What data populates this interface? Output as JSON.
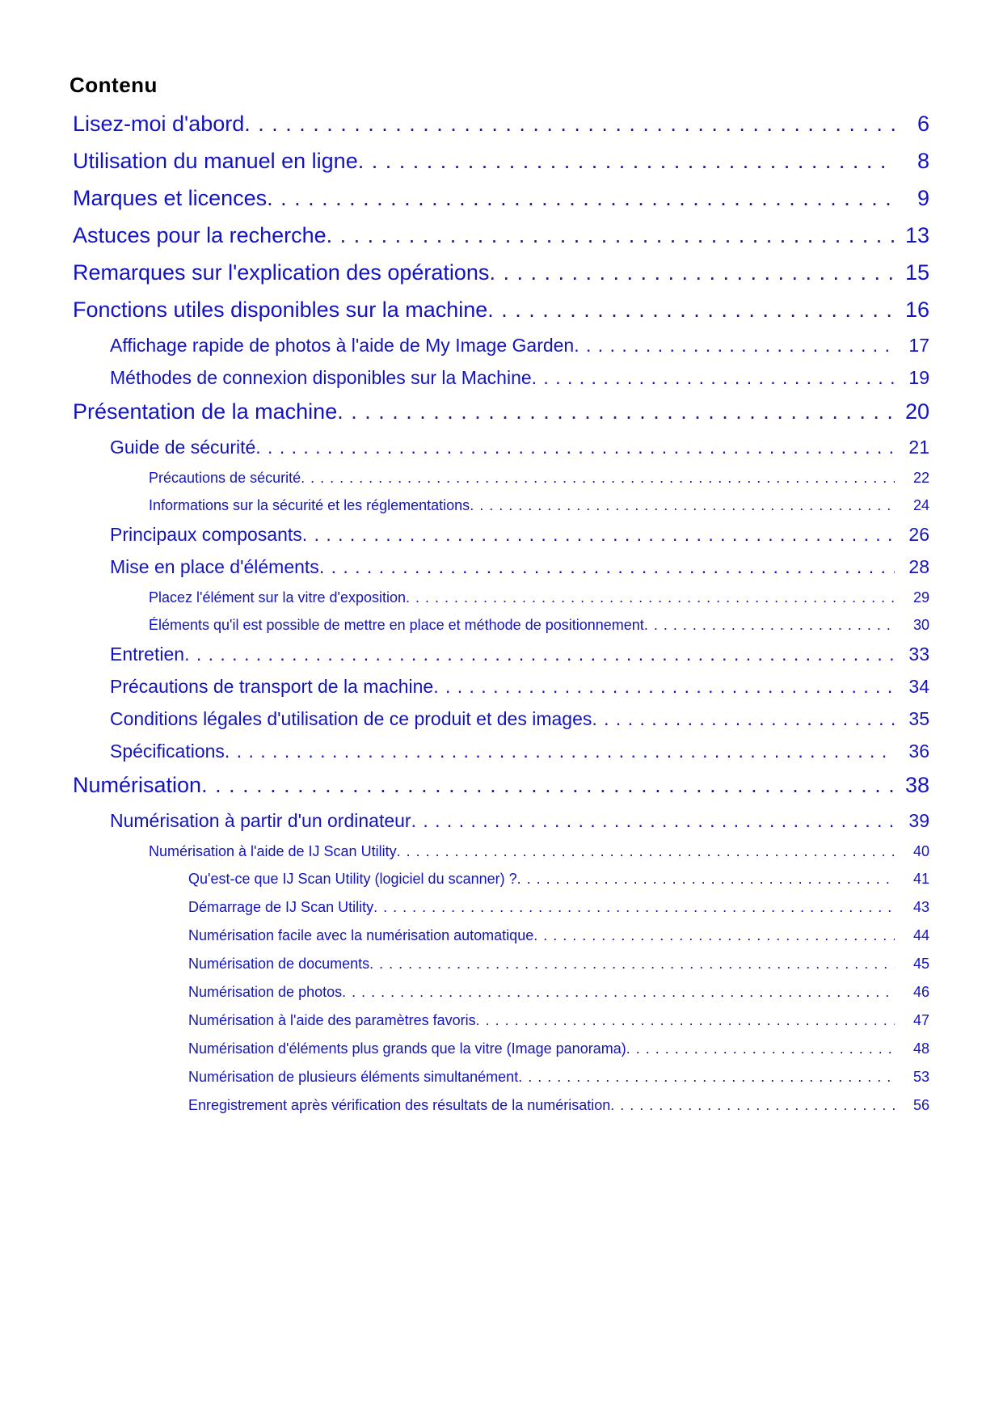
{
  "page": {
    "heading": "Contenu",
    "colors": {
      "link_blue": "#1414be",
      "heading_black": "#000000",
      "paper_white": "#ffffff"
    }
  },
  "toc": {
    "entries": [
      {
        "title": "Lisez-moi d'abord",
        "page": "6",
        "level": 1
      },
      {
        "title": "Utilisation du manuel en ligne",
        "page": "8",
        "level": 1
      },
      {
        "title": "Marques et licences",
        "page": "9",
        "level": 1
      },
      {
        "title": "Astuces pour la recherche",
        "page": "13",
        "level": 1
      },
      {
        "title": "Remarques sur l'explication des opérations",
        "page": "15",
        "level": 1
      },
      {
        "title": "Fonctions utiles disponibles sur la machine",
        "page": "16",
        "level": 1
      },
      {
        "title": "Affichage rapide de photos à l'aide de My Image Garden",
        "page": "17",
        "level": 2
      },
      {
        "title": "Méthodes de connexion disponibles sur la Machine",
        "page": "19",
        "level": 2
      },
      {
        "title": "Présentation de la machine",
        "page": "20",
        "level": 1
      },
      {
        "title": "Guide de sécurité",
        "page": "21",
        "level": 2
      },
      {
        "title": "Précautions de sécurité",
        "page": "22",
        "level": 3
      },
      {
        "title": "Informations sur la sécurité et les réglementations",
        "page": "24",
        "level": 3
      },
      {
        "title": "Principaux composants",
        "page": "26",
        "level": 2
      },
      {
        "title": "Mise en place d'éléments",
        "page": "28",
        "level": 2
      },
      {
        "title": "Placez l'élément sur la vitre d'exposition",
        "page": "29",
        "level": 3
      },
      {
        "title": "Éléments qu'il est possible de mettre en place et méthode de positionnement",
        "page": "30",
        "level": 3
      },
      {
        "title": "Entretien",
        "page": "33",
        "level": 2
      },
      {
        "title": "Précautions de transport de la machine",
        "page": "34",
        "level": 2
      },
      {
        "title": "Conditions légales d'utilisation de ce produit et des images",
        "page": "35",
        "level": 2
      },
      {
        "title": "Spécifications",
        "page": "36",
        "level": 2
      },
      {
        "title": "Numérisation",
        "page": "38",
        "level": 1
      },
      {
        "title": "Numérisation à partir d'un ordinateur",
        "page": "39",
        "level": 2
      },
      {
        "title": "Numérisation à l'aide de IJ Scan Utility",
        "page": "40",
        "level": 3
      },
      {
        "title": "Qu'est-ce que IJ Scan Utility (logiciel du scanner) ?",
        "page": "41",
        "level": 4
      },
      {
        "title": "Démarrage de IJ Scan Utility",
        "page": "43",
        "level": 4
      },
      {
        "title": "Numérisation facile avec la numérisation automatique",
        "page": "44",
        "level": 4
      },
      {
        "title": "Numérisation de documents",
        "page": "45",
        "level": 4
      },
      {
        "title": "Numérisation de photos",
        "page": "46",
        "level": 4
      },
      {
        "title": "Numérisation à l'aide des paramètres favoris",
        "page": "47",
        "level": 4
      },
      {
        "title": "Numérisation d'éléments plus grands que la vitre (Image panorama)",
        "page": "48",
        "level": 4
      },
      {
        "title": "Numérisation de plusieurs éléments simultanément",
        "page": "53",
        "level": 4
      },
      {
        "title": "Enregistrement après vérification des résultats de la numérisation",
        "page": "56",
        "level": 4
      }
    ]
  }
}
